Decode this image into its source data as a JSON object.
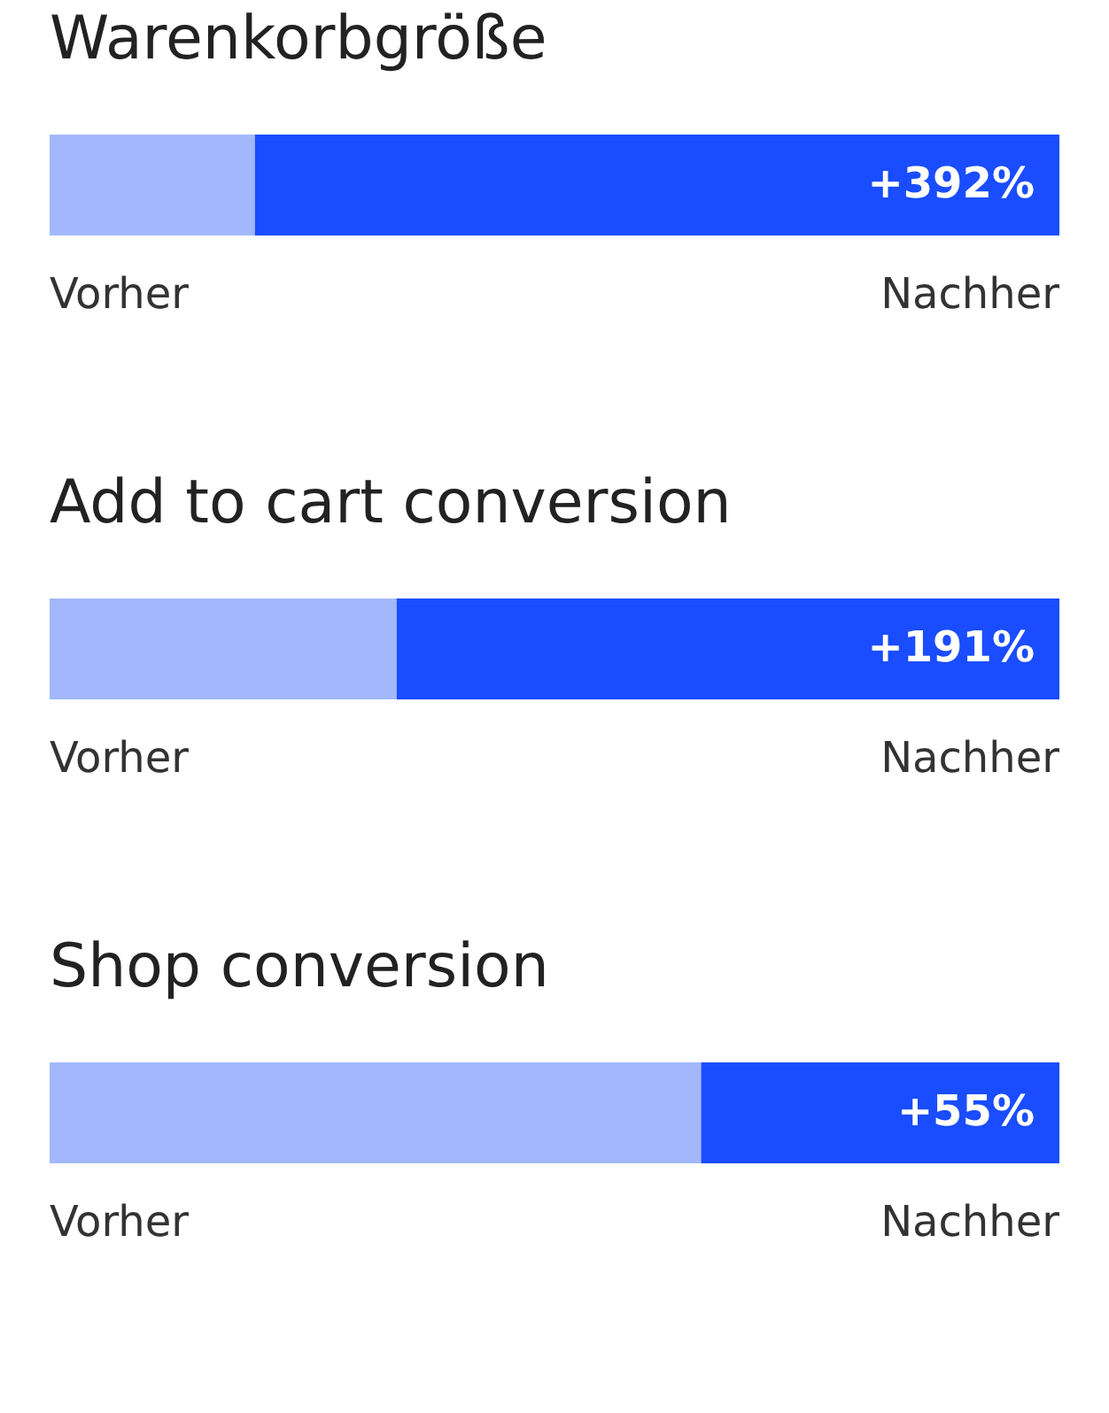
{
  "chart_data": [
    {
      "type": "bar",
      "orientation": "horizontal",
      "stacked": true,
      "title": "Warenkorbgröße",
      "categories": [
        null
      ],
      "series": [
        {
          "name": "Vorher",
          "color": "#a3b8fc",
          "values": [
            100
          ]
        },
        {
          "name": "Nachher",
          "color": "#1a4dff",
          "values": [
            392
          ],
          "value_labels": [
            "+392%"
          ]
        }
      ]
    },
    {
      "type": "bar",
      "orientation": "horizontal",
      "stacked": true,
      "title": "Add to cart conversion",
      "categories": [
        null
      ],
      "series": [
        {
          "name": "Vorher",
          "color": "#a3b8fc",
          "values": [
            100
          ]
        },
        {
          "name": "Nachher",
          "color": "#1a4dff",
          "values": [
            191
          ],
          "value_labels": [
            "+191%"
          ]
        }
      ]
    },
    {
      "type": "bar",
      "orientation": "horizontal",
      "stacked": true,
      "title": "Shop conversion",
      "categories": [
        null
      ],
      "series": [
        {
          "name": "Vorher",
          "color": "#a3b8fc",
          "values": [
            100
          ]
        },
        {
          "name": "Nachher",
          "color": "#1a4dff",
          "values": [
            55
          ],
          "value_labels": [
            "+55%"
          ]
        }
      ]
    }
  ]
}
